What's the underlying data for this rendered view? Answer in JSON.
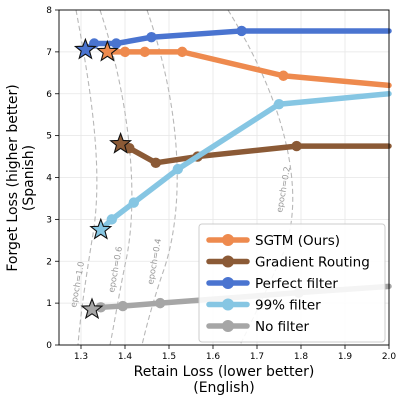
{
  "chart_data": {
    "type": "line",
    "xlabel": [
      "Retain Loss (lower better)",
      "(English)"
    ],
    "ylabel": [
      "Forget Loss (higher better)",
      "(Spanish)"
    ],
    "xlim": [
      1.25,
      2.0
    ],
    "ylim": [
      0,
      8
    ],
    "xticks": [
      "1.3",
      "1.4",
      "1.5",
      "1.6",
      "1.7",
      "1.8",
      "1.9",
      "2.0"
    ],
    "yticks": [
      "0",
      "1",
      "2",
      "3",
      "4",
      "5",
      "6",
      "7",
      "8"
    ],
    "grid": true,
    "legend_position": "bottom-right",
    "series": [
      {
        "name": "Perfect filter",
        "color": "#4a74d0",
        "points": [
          [
            1.31,
            7.05
          ],
          [
            1.33,
            7.2
          ],
          [
            1.38,
            7.2
          ],
          [
            1.46,
            7.35
          ],
          [
            1.665,
            7.5
          ],
          [
            2.0,
            7.5
          ]
        ],
        "star": [
          1.31,
          7.05
        ]
      },
      {
        "name": "SGTM (Ours)",
        "color": "#ee8a4e",
        "points": [
          [
            1.36,
            7.0
          ],
          [
            1.4,
            7.0
          ],
          [
            1.445,
            7.0
          ],
          [
            1.53,
            7.0
          ],
          [
            1.76,
            6.43
          ],
          [
            2.0,
            6.2
          ]
        ],
        "star": [
          1.36,
          7.0
        ]
      },
      {
        "name": "Gradient Routing",
        "color": "#8b5a36",
        "points": [
          [
            1.39,
            4.8
          ],
          [
            1.41,
            4.7
          ],
          [
            1.47,
            4.35
          ],
          [
            1.565,
            4.5
          ],
          [
            1.79,
            4.75
          ],
          [
            2.0,
            4.75
          ]
        ],
        "star": [
          1.39,
          4.8
        ]
      },
      {
        "name": "99% filter",
        "color": "#86c6e3",
        "points": [
          [
            1.345,
            2.75
          ],
          [
            1.37,
            3.0
          ],
          [
            1.42,
            3.4
          ],
          [
            1.52,
            4.2
          ],
          [
            1.75,
            5.75
          ],
          [
            2.0,
            6.0
          ]
        ],
        "star": [
          1.345,
          2.75
        ]
      },
      {
        "name": "No filter",
        "color": "#a6a6a6",
        "points": [
          [
            1.325,
            0.85
          ],
          [
            1.345,
            0.9
          ],
          [
            1.395,
            0.93
          ],
          [
            1.48,
            1.0
          ],
          [
            1.795,
            1.25
          ],
          [
            2.0,
            1.4
          ]
        ],
        "star": [
          1.325,
          0.85
        ]
      }
    ],
    "legend_order": [
      "SGTM (Ours)",
      "Gradient Routing",
      "Perfect filter",
      "99% filter",
      "No filter"
    ],
    "epoch_labels": [
      "epoch=1.0",
      "epoch=0.6",
      "epoch=0.4",
      "epoch=0.2"
    ]
  }
}
